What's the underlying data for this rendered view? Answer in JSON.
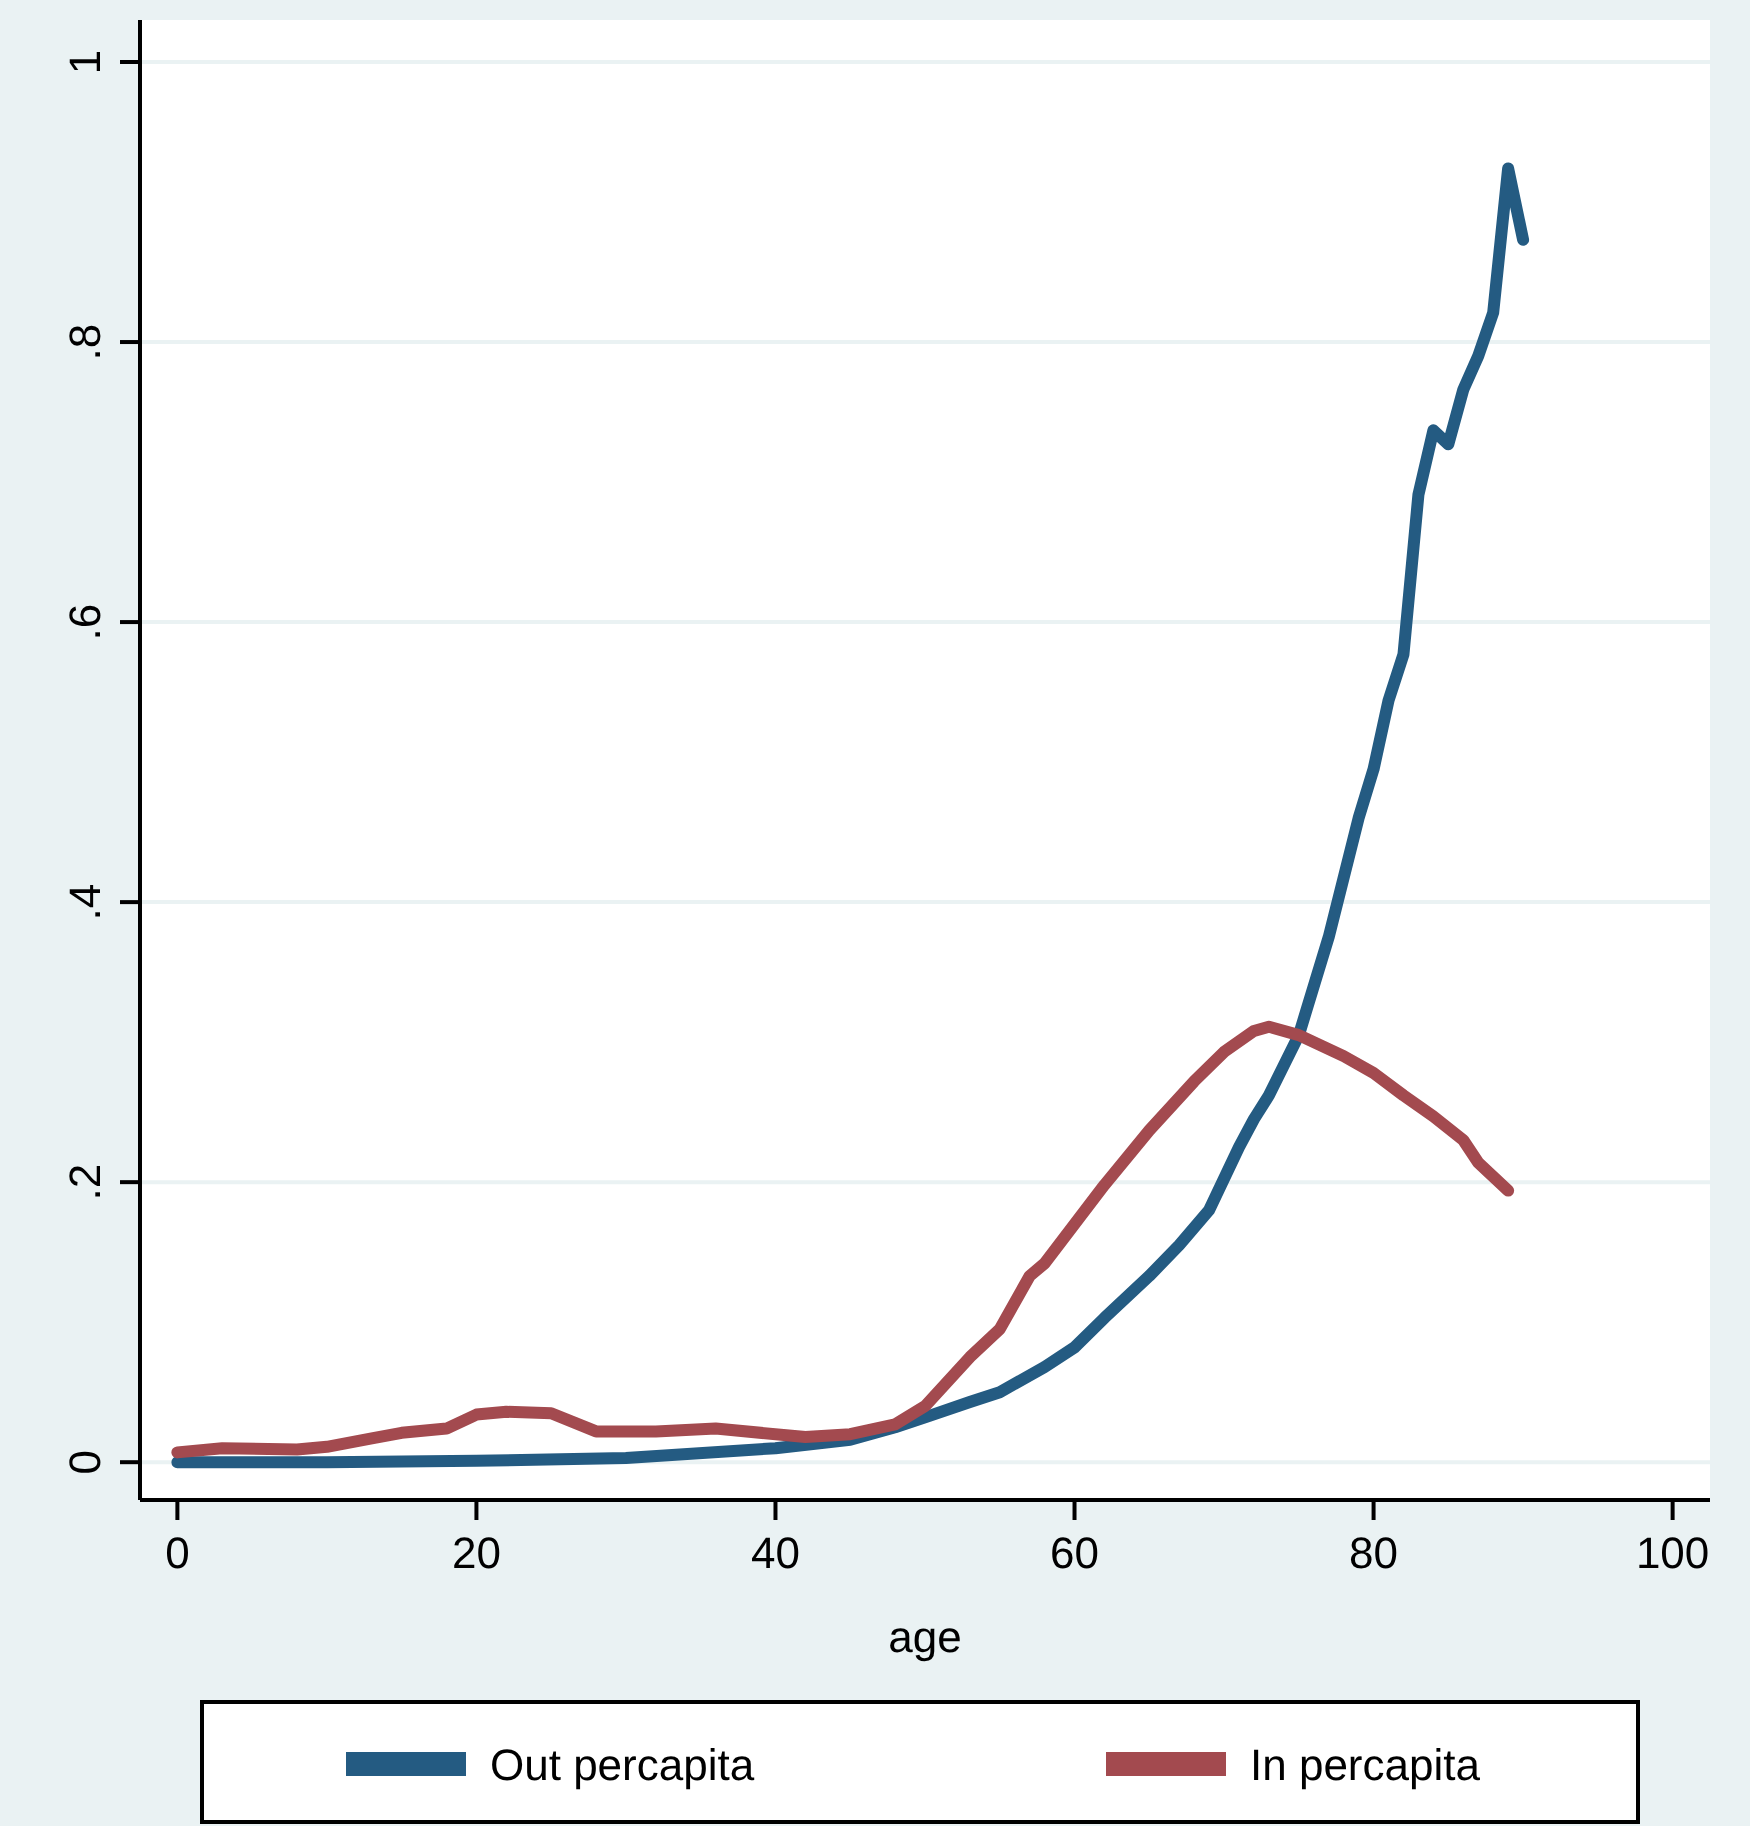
{
  "chart_data": {
    "type": "line",
    "xlabel": "age",
    "xlim": [
      -2.5,
      102.5
    ],
    "xticks": [
      0,
      20,
      40,
      60,
      80,
      100
    ],
    "ylim": [
      -0.027,
      1.03
    ],
    "yticks": [
      0,
      {
        "value": 0.2,
        "label": ".2"
      },
      {
        "value": 0.4,
        "label": ".4"
      },
      {
        "value": 0.6,
        "label": ".6"
      },
      {
        "value": 0.8,
        "label": ".8"
      },
      1
    ],
    "grid": "y",
    "legend": "bottom",
    "line_style": "solid",
    "marker": "none",
    "series": [
      {
        "name": "Out percapita",
        "color": "#245b82",
        "x": [
          0,
          10,
          20,
          30,
          40,
          45,
          48,
          50,
          53,
          55,
          58,
          60,
          62,
          65,
          67,
          69,
          71,
          72,
          73,
          75,
          77,
          79,
          80,
          81,
          82,
          83,
          84,
          85,
          86,
          87,
          88,
          89,
          90
        ],
        "values": [
          0,
          0,
          0.001,
          0.003,
          0.01,
          0.016,
          0.025,
          0.032,
          0.043,
          0.05,
          0.068,
          0.082,
          0.103,
          0.133,
          0.155,
          0.18,
          0.225,
          0.245,
          0.262,
          0.305,
          0.375,
          0.46,
          0.495,
          0.544,
          0.577,
          0.691,
          0.737,
          0.727,
          0.766,
          0.79,
          0.821,
          0.924,
          0.873
        ]
      },
      {
        "name": "In percapita",
        "color": "#a34a4f",
        "x": [
          0,
          3,
          8,
          10,
          13,
          15,
          18,
          20,
          22,
          25,
          28,
          32,
          36,
          42,
          45,
          48,
          50,
          53,
          55,
          57,
          58,
          60,
          62,
          65,
          68,
          70,
          72,
          73,
          75,
          78,
          80,
          82,
          84,
          86,
          87,
          89
        ],
        "values": [
          0.007,
          0.01,
          0.009,
          0.011,
          0.017,
          0.021,
          0.024,
          0.034,
          0.036,
          0.035,
          0.022,
          0.022,
          0.024,
          0.018,
          0.02,
          0.027,
          0.04,
          0.075,
          0.095,
          0.133,
          0.142,
          0.17,
          0.198,
          0.237,
          0.272,
          0.293,
          0.308,
          0.311,
          0.305,
          0.29,
          0.278,
          0.262,
          0.247,
          0.23,
          0.214,
          0.194
        ]
      }
    ]
  }
}
